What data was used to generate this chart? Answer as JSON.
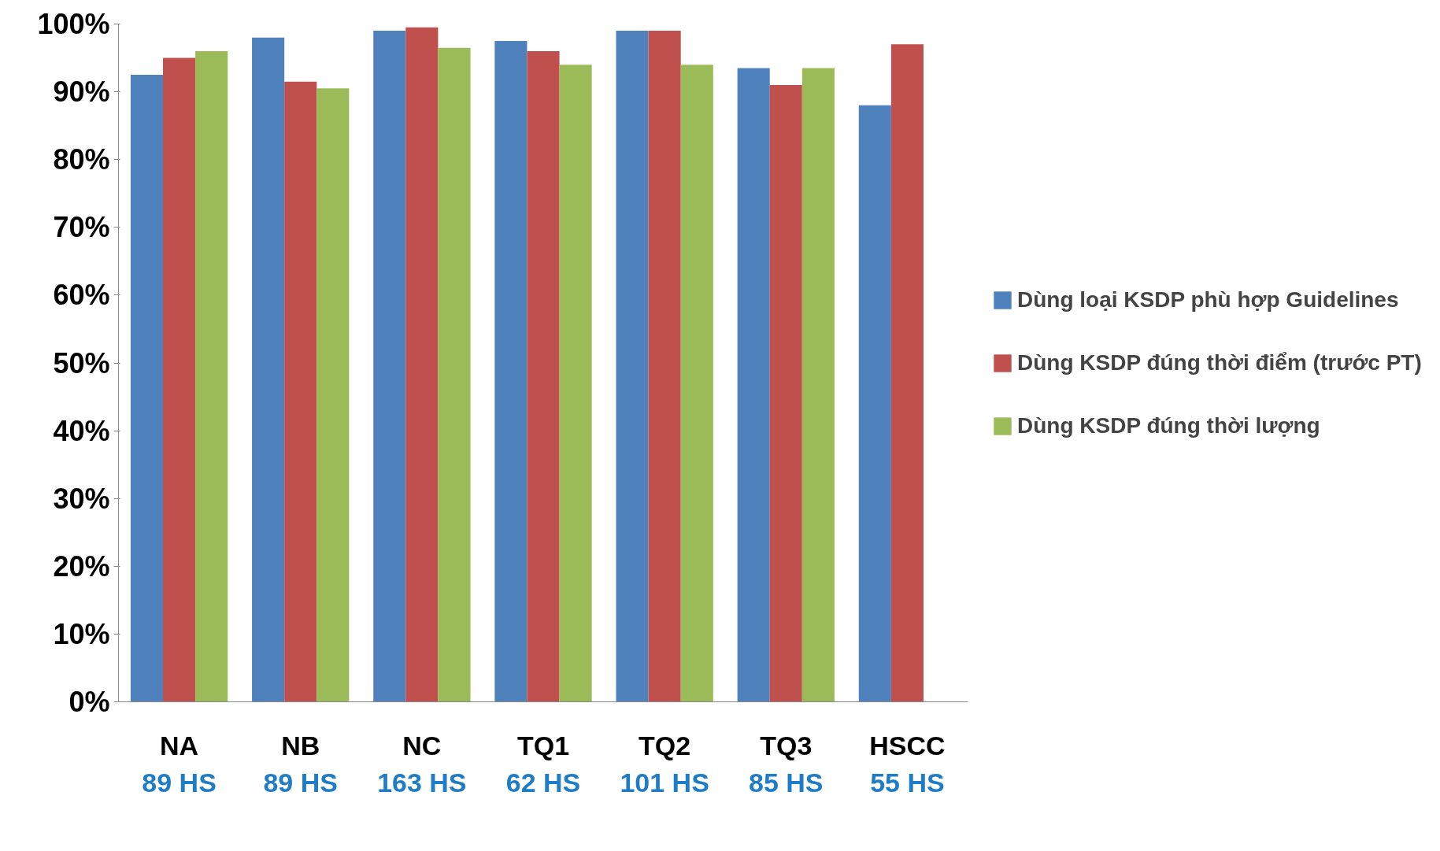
{
  "chart_data": {
    "type": "bar",
    "categories": [
      "NA\n89 HS",
      "NB\n89 HS",
      "NC\n163 HS",
      "TQ1\n62 HS",
      "TQ2\n101 HS",
      "TQ3\n85 HS",
      "HSCC\n55 HS"
    ],
    "series": [
      {
        "name": "Dùng loại KSDP phù hợp Guidelines",
        "color": "#4f81bd",
        "values": [
          92.5,
          98,
          99,
          97.5,
          99,
          93.5,
          88
        ]
      },
      {
        "name": "Dùng KSDP đúng thời điểm (trước PT)",
        "color": "#c0504d",
        "values": [
          95,
          91.5,
          99.5,
          96,
          99,
          91,
          97
        ]
      },
      {
        "name": "Dùng KSDP đúng thời lượng",
        "color": "#9bbb59",
        "values": [
          96,
          90.5,
          96.5,
          94,
          94,
          93.5,
          0
        ]
      }
    ],
    "ylim": [
      0,
      100
    ],
    "yticks": [
      {
        "value": 0,
        "label": "0%"
      },
      {
        "value": 10,
        "label": "10%"
      },
      {
        "value": 20,
        "label": "20%"
      },
      {
        "value": 30,
        "label": "30%"
      },
      {
        "value": 40,
        "label": "40%"
      },
      {
        "value": 50,
        "label": "50%"
      },
      {
        "value": 60,
        "label": "60%"
      },
      {
        "value": 70,
        "label": "70%"
      },
      {
        "value": 80,
        "label": "80%"
      },
      {
        "value": 90,
        "label": "90%"
      },
      {
        "value": 100,
        "label": "100%"
      }
    ],
    "grid": false,
    "legend": "right"
  }
}
